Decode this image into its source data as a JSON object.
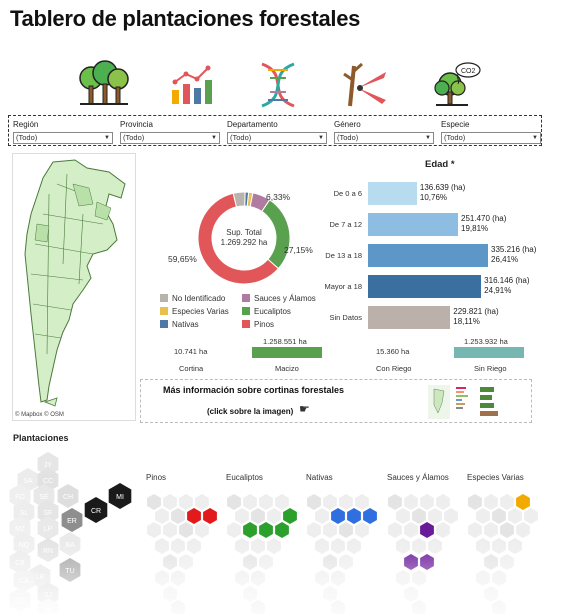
{
  "header": {
    "title": "Tablero de plantaciones forestales"
  },
  "icons": [
    "forest-icon",
    "bar-chart-icon",
    "dna-icon",
    "pruning-shears-icon",
    "co2-tree-icon"
  ],
  "filters": [
    {
      "label": "Región",
      "value": "(Todo)"
    },
    {
      "label": "Provincia",
      "value": "(Todo)"
    },
    {
      "label": "Departamento",
      "value": "(Todo)"
    },
    {
      "label": "Género",
      "value": "(Todo)"
    },
    {
      "label": "Especie",
      "value": "(Todo)"
    }
  ],
  "map": {
    "credit": "© Mapbox  © OSM"
  },
  "donut": {
    "center_label": "Sup. Total",
    "center_value": "1.269.292 ha",
    "pct_small": "6,33%",
    "pct_eucaliptos": "27,15%",
    "pct_pinos": "59,65%"
  },
  "legend": [
    {
      "label": "No Identificado",
      "color": "#b9b3ad"
    },
    {
      "label": "Sauces y Álamos",
      "color": "#b07aa1"
    },
    {
      "label": "Especies Varias",
      "color": "#e9c04d"
    },
    {
      "label": "Eucaliptos",
      "color": "#59a14f"
    },
    {
      "label": "Nativas",
      "color": "#4e79a7"
    },
    {
      "label": "Pinos",
      "color": "#e15759"
    }
  ],
  "comparisons": {
    "cortina_value": "10.741 ha",
    "cortina_label": "Cortina",
    "macizo_value": "1.258.551 ha",
    "macizo_label": "Macizo",
    "con_riego_value": "15.360 ha",
    "con_riego_label": "Con Riego",
    "sin_riego_value": "1.253.932 ha",
    "sin_riego_label": "Sin Riego"
  },
  "age": {
    "title": "Edad *",
    "rows": [
      {
        "label": "De 0 a 6",
        "ha": "136.639 (ha)",
        "pct": "10,76%",
        "color": "#b8dcef"
      },
      {
        "label": "De 7 a 12",
        "ha": "251.470 (ha)",
        "pct": "19,81%",
        "color": "#8dbde0"
      },
      {
        "label": "De 13 a 18",
        "ha": "335.216 (ha)",
        "pct": "26,41%",
        "color": "#5d97c8"
      },
      {
        "label": "Mayor a 18",
        "ha": "316.146 (ha)",
        "pct": "24,91%",
        "color": "#3a6fa0"
      },
      {
        "label": "Sin Datos",
        "ha": "229.821 (ha)",
        "pct": "18,11%",
        "color": "#bbb1aa"
      }
    ]
  },
  "chart_data": [
    {
      "type": "pie",
      "categories": [
        "Pinos",
        "Eucaliptos",
        "Sauces y Álamos",
        "Especies Varias",
        "Nativas",
        "No Identificado"
      ],
      "values": [
        59.65,
        27.15,
        6.33,
        1.5,
        1.2,
        4.17
      ],
      "title": "Sup. Total 1.269.292 ha"
    },
    {
      "type": "bar",
      "title": "Edad *",
      "categories": [
        "De 0 a 6",
        "De 7 a 12",
        "De 13 a 18",
        "Mayor a 18",
        "Sin Datos"
      ],
      "values": [
        136639,
        251470,
        335216,
        316146,
        229821
      ]
    }
  ],
  "info": {
    "title": "Más información sobre cortinas forestales",
    "subtitle": "(click sobre la imagen)"
  },
  "plantaciones": {
    "title": "Plantaciones",
    "big_hexes": [
      "CR",
      "MI"
    ],
    "small_hexes": [
      "JY",
      "SA",
      "CC",
      "FO",
      "SE",
      "CH",
      "ER",
      "SL",
      "SF",
      "MZ",
      "LP",
      "BA",
      "NQ",
      "RN",
      "CB",
      "TU",
      "LR",
      "CA",
      "SJ",
      "SC",
      "TF"
    ],
    "species": [
      "Pinos",
      "Eucaliptos",
      "Nativas",
      "Sauces y Álamos",
      "Especies Varias"
    ],
    "species_colors": [
      "#e31a1c",
      "#2ca02c",
      "#2f6fe0",
      "#6a1b9a",
      "#f2a900"
    ]
  }
}
